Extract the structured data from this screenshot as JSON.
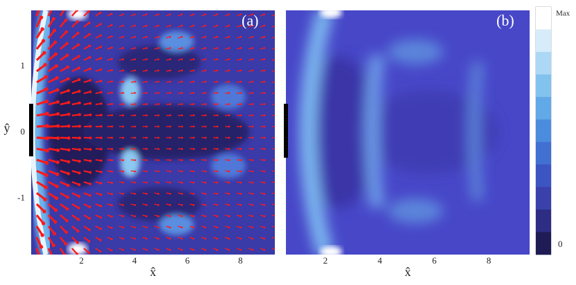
{
  "chart_data": [
    {
      "type": "contour",
      "title": "(a)",
      "xlabel": "x̂",
      "ylabel": "ŷ",
      "xlim": [
        0.1,
        9.3
      ],
      "ylim": [
        -1.85,
        1.85
      ],
      "xticks": [
        2,
        4,
        6,
        8
      ],
      "yticks": [
        1,
        0,
        -1
      ],
      "arrows": true
    },
    {
      "type": "contour",
      "title": "(b)",
      "xlabel": "x̂",
      "xlim": [
        0.55,
        9.5
      ],
      "ylim": [
        -1.85,
        1.85
      ],
      "xticks": [
        2,
        4,
        6,
        8
      ],
      "arrows": false
    }
  ],
  "colorbar": {
    "labels": [
      "Max",
      "0"
    ],
    "colors": [
      "#ffffff",
      "#d6ecfa",
      "#acd8f6",
      "#82c2ef",
      "#62a9e8",
      "#4c8cde",
      "#416fd2",
      "#3c55c2",
      "#3a41aa",
      "#2e2d84",
      "#1f1b55"
    ]
  }
}
